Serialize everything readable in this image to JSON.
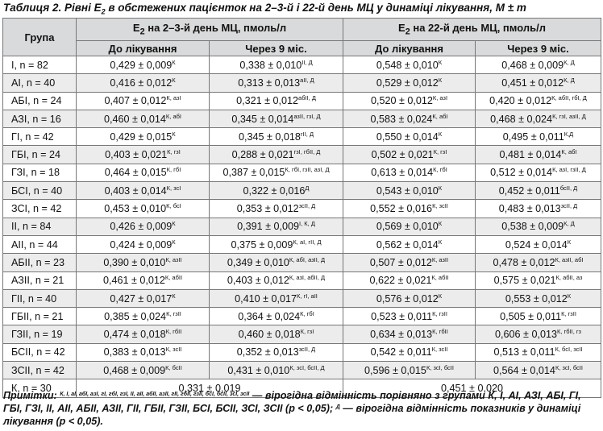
{
  "title": {
    "pre": "Таблиця 2. Рівні Е",
    "sub": "2",
    "post": " в обстежених пацієнток на 2–3-й і 22-й день МЦ у динаміці лікування, M ± m"
  },
  "header": {
    "group": "Група",
    "e2_prefix": "Е",
    "e2_sub": "2",
    "e2_day23": " на 2–3-й день МЦ, пмоль/л",
    "e2_day22": " на 22-й день МЦ, пмоль/л",
    "before": "До лікування",
    "after": "Через 9 міс."
  },
  "rows": [
    {
      "group": "І, n = 82",
      "c1": "0,429 ± 0,009",
      "s1": "К",
      "c2": "0,338 ± 0,010",
      "s2": "ІІ, Д",
      "c3": "0,548 ± 0,010",
      "s3": "К",
      "c4": "0,468 ± 0,009",
      "s4": "К, Д"
    },
    {
      "group": "АІ, n = 40",
      "c1": "0,416 ± 0,012",
      "s1": "К",
      "c2": "0,313 ± 0,013",
      "s2": "аІІ, Д",
      "c3": "0,529 ± 0,012",
      "s3": "К",
      "c4": "0,451 ± 0,012",
      "s4": "К, Д"
    },
    {
      "group": "АБІ, n = 24",
      "c1": "0,407 ± 0,012",
      "s1": "К, азІ",
      "c2": "0,321 ± 0,012",
      "s2": "абІІ, Д",
      "c3": "0,520 ± 0,012",
      "s3": "К, азІ",
      "c4": "0,420 ± 0,012",
      "s4": "К, абІІ, гбІ, Д"
    },
    {
      "group": "АЗІ, n = 16",
      "c1": "0,460 ± 0,014",
      "s1": "К, абІ",
      "c2": "0,345 ± 0,014",
      "s2": "азІІ, гзІ, Д",
      "c3": "0,583 ± 0,024",
      "s3": "К, абІ",
      "c4": "0,468 ± 0,024",
      "s4": "К, гзІ, азІІ, Д"
    },
    {
      "group": "ГІ, n = 42",
      "c1": "0,429 ± 0,015",
      "s1": "К",
      "c2": "0,345 ± 0,018",
      "s2": "гІІ, Д",
      "c3": "0,550 ± 0,014",
      "s3": "К",
      "c4": "0,495 ± 0,011",
      "s4": "К,Д"
    },
    {
      "group": "ГБІ, n = 24",
      "c1": "0,403 ± 0,021",
      "s1": "К, гзІ",
      "c2": "0,288 ± 0,021",
      "s2": "гзІ, гбІІ, Д",
      "c3": "0,502 ± 0,021",
      "s3": "К, гзІ",
      "c4": "0,481 ± 0,014",
      "s4": "К, абІ"
    },
    {
      "group": "ГЗІ, n = 18",
      "c1": "0,464 ± 0,015",
      "s1": "К, гбІ",
      "c2": "0,387 ± 0,015",
      "s2": "К, гбІ, гзІІ, азІ, Д",
      "c3": "0,613 ± 0,014",
      "s3": "К, гбІ",
      "c4": "0,512 ± 0,014",
      "s4": "К, азІ, гзІІ, Д"
    },
    {
      "group": "БСІ, n = 40",
      "c1": "0,403 ± 0,014",
      "s1": "К, зсІ",
      "c2": "0,322 ± 0,016",
      "s2": "Д",
      "c3": "0,543 ± 0,010",
      "s3": "К",
      "c4": "0,452 ± 0,011",
      "s4": "бсІІ, Д"
    },
    {
      "group": "ЗСІ, n = 42",
      "c1": "0,453 ± 0,010",
      "s1": "К, бсІ",
      "c2": "0,353 ± 0,012",
      "s2": "зсІІ, Д",
      "c3": "0,552 ± 0,016",
      "s3": "К, зсІІ",
      "c4": "0,483 ± 0,013",
      "s4": "зсІІ, Д"
    },
    {
      "group": "ІІ, n = 84",
      "c1": "0,426 ± 0,009",
      "s1": "К",
      "c2": "0,391 ± 0,009",
      "s2": "І, К, Д",
      "c3": "0,569 ± 0,010",
      "s3": "К",
      "c4": "0,538 ± 0,009",
      "s4": "К, Д"
    },
    {
      "group": "АІІ, n = 44",
      "c1": "0,424 ± 0,009",
      "s1": "К",
      "c2": "0,375 ± 0,009",
      "s2": "К, аІ, гІІ, Д",
      "c3": "0,562 ± 0,014",
      "s3": "К",
      "c4": "0,524 ± 0,014",
      "s4": "К"
    },
    {
      "group": "АБІІ, n = 23",
      "c1": "0,390 ± 0,010",
      "s1": "К, азІІ",
      "c2": "0,349 ± 0,010",
      "s2": "К, абІ, азІІ, Д",
      "c3": "0,507 ± 0,012",
      "s3": "К, азІІ",
      "c4": "0,478 ± 0,012",
      "s4": "К, азІІ, абІ"
    },
    {
      "group": "АЗІІ, n = 21",
      "c1": "0,461 ± 0,012",
      "s1": "К, абІІ",
      "c2": "0,403 ± 0,012",
      "s2": "К, азІ, абІІ, Д",
      "c3": "0,622 ± 0,021",
      "s3": "К, абІІ",
      "c4": "0,575 ± 0,021",
      "s4": "К, абІІ, аз"
    },
    {
      "group": "ГІІ, n = 40",
      "c1": "0,427 ± 0,017",
      "s1": "К",
      "c2": "0,410 ± 0,017",
      "s2": "К, гІ, аІІ",
      "c3": "0,576 ± 0,012",
      "s3": "К",
      "c4": "0,553 ± 0,012",
      "s4": "К"
    },
    {
      "group": "ГБІІ, n = 21",
      "c1": "0,385 ± 0,024",
      "s1": "К, гзІІ",
      "c2": "0,364 ± 0,024",
      "s2": "К, гбІ",
      "c3": "0,523 ± 0,011",
      "s3": "К, гзІІ",
      "c4": "0,505 ± 0,011",
      "s4": "К, гзІІ"
    },
    {
      "group": "ГЗІІ, n = 19",
      "c1": "0,474 ± 0,018",
      "s1": "К, гбІІ",
      "c2": "0,460 ± 0,018",
      "s2": "К, гзІ",
      "c3": "0,634 ± 0,013",
      "s3": "К, гбІІ",
      "c4": "0,606 ± 0,013",
      "s4": "К, гбІІ, гз"
    },
    {
      "group": "БСІІ, n = 42",
      "c1": "0,383 ± 0,013",
      "s1": "К, зсІІ",
      "c2": "0,352 ± 0,013",
      "s2": "зсІІ, Д",
      "c3": "0,542 ± 0,011",
      "s3": "К, зсІІ",
      "c4": "0,513 ± 0,011",
      "s4": "К, бсІ, зсІІ"
    },
    {
      "group": "ЗСІІ, n = 42",
      "c1": "0,468 ± 0,009",
      "s1": "К, бсІІ",
      "c2": "0,431 ± 0,010",
      "s2": "К, зсІ, бсІІ, Д",
      "c3": "0,596 ± 0,015",
      "s3": "К, зсІ, бсІІ",
      "c4": "0,564 ± 0,014",
      "s4": "К, зсІ, бсІІ"
    }
  ],
  "control": {
    "group": "К, n = 30",
    "val1": "0,331 ± 0,019",
    "val2": "0,451 ± 0,020"
  },
  "notes": {
    "label": "Примітки: ",
    "sup": "К, І, аІ, абІ, азІ, гІ, гбІ, гзІ, ІІ, аІІ, абІІ, азІІ, гІІ, гбІІ, гзІІ, бсІ, бсІІ, зсІ, зсІІ",
    "text1": " — вірогідна відмінність порівняно з групами К, І, АІ, АЗІ, АБІ, ГІ, ГБІ, ГЗІ, ІІ, АІІ, АБІІ, АЗІІ, ГІІ, ГБІІ, ГЗІІ, БСІ, БСІІ, ЗСІ, ЗСІІ (p < 0,05); ",
    "sup2": "Д",
    "text2": " — вірогідна відмінність показників у динаміці лікування (p < 0,05)."
  }
}
